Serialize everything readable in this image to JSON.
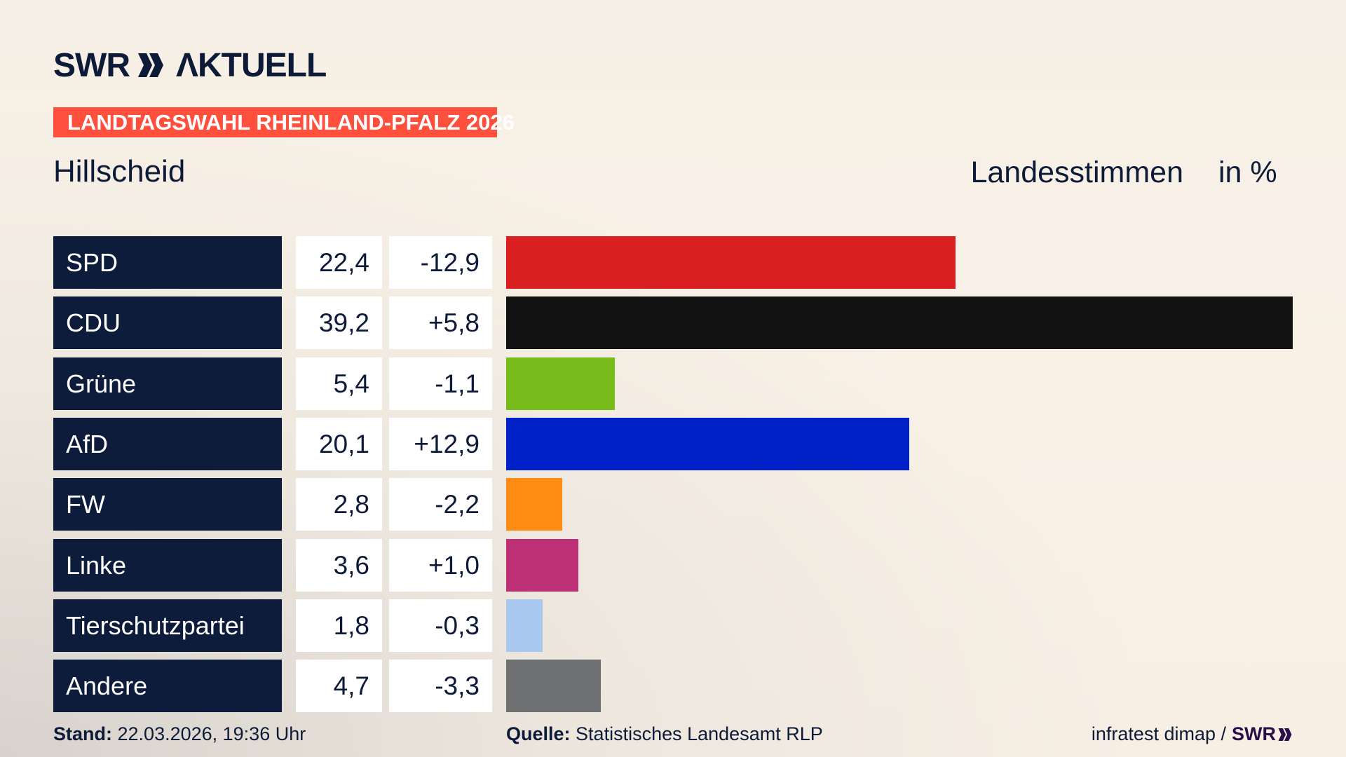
{
  "header": {
    "logo_text": "SWR AKTUELL",
    "banner": "LANDTAGSWAHL RHEINLAND-PFALZ 2026",
    "place": "Hillscheid",
    "measure": "Landesstimmen",
    "unit": "in %"
  },
  "chart_data": {
    "type": "bar",
    "orientation": "horizontal",
    "categories": [
      "SPD",
      "CDU",
      "Grüne",
      "AfD",
      "FW",
      "Linke",
      "Tierschutzpartei",
      "Andere"
    ],
    "values": [
      22.4,
      39.2,
      5.4,
      20.1,
      2.8,
      3.6,
      1.8,
      4.7
    ],
    "values_label": [
      "22,4",
      "39,2",
      "5,4",
      "20,1",
      "2,8",
      "3,6",
      "1,8",
      "4,7"
    ],
    "changes": [
      -12.9,
      5.8,
      -1.1,
      12.9,
      -2.2,
      1.0,
      -0.3,
      -3.3
    ],
    "changes_label": [
      "-12,9",
      "+5,8",
      "-1,1",
      "+12,9",
      "-2,2",
      "+1,0",
      "-0,3",
      "-3,3"
    ],
    "colors": [
      "#d91f1f",
      "#121212",
      "#78bc1b",
      "#0021c8",
      "#ff8b13",
      "#bd3075",
      "#a9c8ef",
      "#6f7072"
    ],
    "xlim": [
      0,
      39.2
    ],
    "grid": false
  },
  "footer": {
    "stand_label": "Stand:",
    "stand_value": "22.03.2026, 19:36 Uhr",
    "source_label": "Quelle:",
    "source_value": "Statistisches Landesamt RLP",
    "credit": "infratest dimap /",
    "credit_logo": "SWR"
  }
}
